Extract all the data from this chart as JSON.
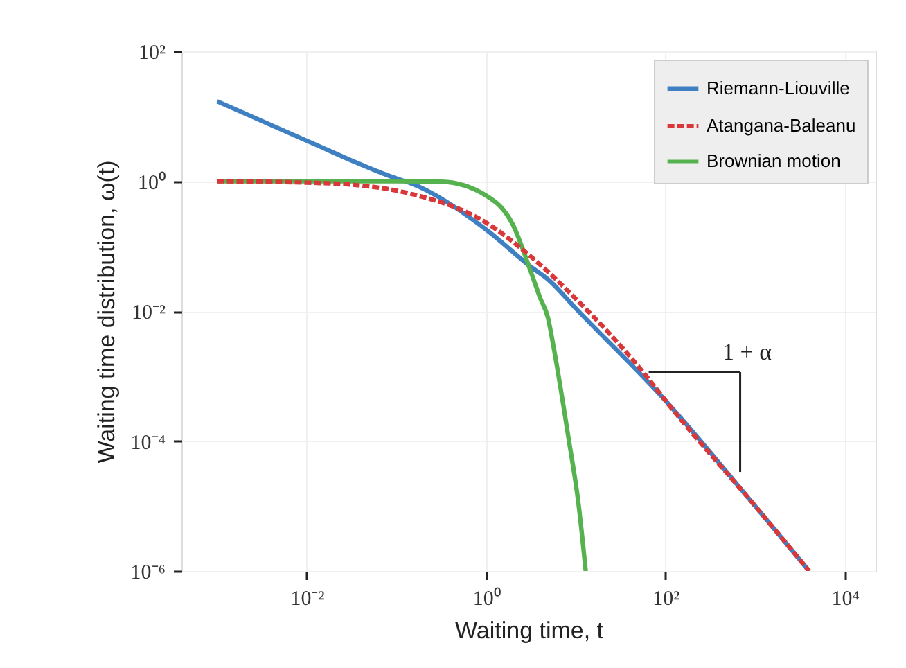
{
  "chart_data": {
    "type": "line",
    "xlabel": "Waiting time, t",
    "ylabel": "Waiting time distribution, ω(t)",
    "log": "xy",
    "grid": true,
    "legend": "top right",
    "xlim": [
      0.0004,
      22000
    ],
    "ylim": [
      1e-06,
      100
    ],
    "xticks": [
      {
        "value": 0.01,
        "label": "10⁻²"
      },
      {
        "value": 1,
        "label": "10⁰"
      },
      {
        "value": 100,
        "label": "10²"
      },
      {
        "value": 10000,
        "label": "10⁴"
      }
    ],
    "yticks": [
      {
        "value": 1e-06,
        "label": "10⁻⁶"
      },
      {
        "value": 0.0001,
        "label": "10⁻⁴"
      },
      {
        "value": 0.01,
        "label": "10⁻²"
      },
      {
        "value": 1,
        "label": "10⁰"
      },
      {
        "value": 100,
        "label": "10²"
      }
    ],
    "annotations": [
      {
        "text": "1 + α",
        "x": 65,
        "y": 0.00115
      }
    ],
    "series": [
      {
        "name": "Riemann-Liouville",
        "color": "#3f80c2",
        "line_style": "solid",
        "x": [
          0.001,
          0.01,
          0.1,
          0.138,
          1,
          3.16,
          5,
          10,
          100,
          1000,
          4000
        ],
        "values": [
          17,
          4.2,
          1.1,
          0.95,
          0.18,
          0.048,
          0.03,
          0.011,
          0.00042,
          1e-05,
          1e-06
        ]
      },
      {
        "name": "Atangana-Baleanu",
        "color": "#d9383a",
        "line_style": "dashed",
        "x": [
          0.001,
          0.01,
          0.03,
          0.138,
          1,
          3.16,
          10,
          63,
          100,
          1000,
          4000
        ],
        "values": [
          1,
          0.95,
          0.89,
          0.65,
          0.23,
          0.069,
          0.0155,
          0.00095,
          0.00042,
          1e-05,
          1e-06
        ]
      },
      {
        "name": "Brownian motion",
        "color": "#55b24f",
        "line_style": "solid",
        "x": [
          0.001,
          0.01,
          0.1,
          0.32,
          1,
          2,
          3.16,
          4,
          4.9,
          5.6,
          8.3,
          10.7,
          12.9
        ],
        "values": [
          1,
          1,
          1,
          0.98,
          0.6,
          0.21,
          0.04,
          0.016,
          0.0078,
          0.003,
          0.00011,
          1.1e-05,
          1e-06
        ]
      }
    ]
  }
}
